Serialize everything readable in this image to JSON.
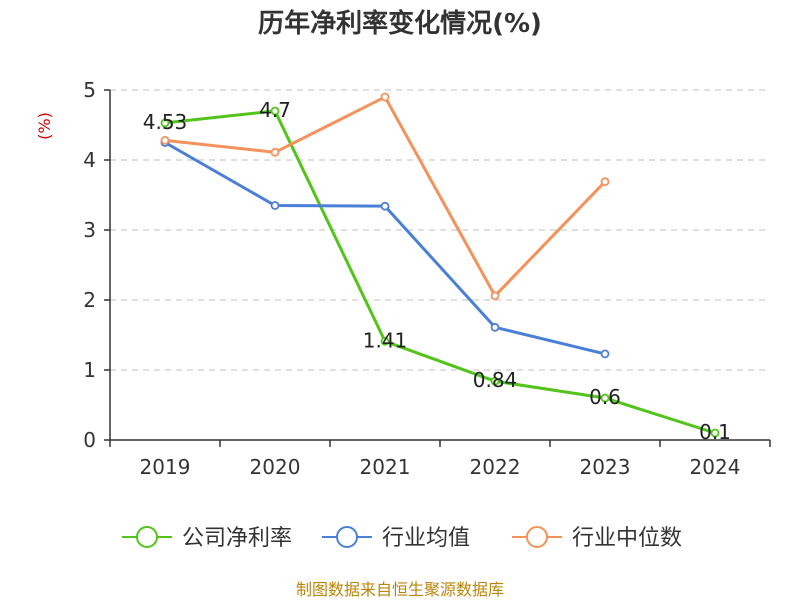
{
  "chart_data": {
    "type": "line",
    "title": "历年净利率变化情况(%)",
    "ylabel": "(%)",
    "xlabel": "",
    "categories": [
      "2019",
      "2020",
      "2021",
      "2022",
      "2023",
      "2024"
    ],
    "ylim": [
      0,
      5
    ],
    "yticks": [
      0,
      1,
      2,
      3,
      4,
      5
    ],
    "grid": true,
    "legend_position": "bottom",
    "series": [
      {
        "name": "公司净利率",
        "color": "#52c41a",
        "values": [
          4.53,
          4.7,
          1.41,
          0.84,
          0.6,
          0.1
        ],
        "show_labels": true,
        "labels": [
          "4.53",
          "4.7",
          "1.41",
          "0.84",
          "0.6",
          "0.1"
        ]
      },
      {
        "name": "行业均值",
        "color": "#4a7fd8",
        "values": [
          4.25,
          3.35,
          3.34,
          1.61,
          1.23,
          null
        ],
        "show_labels": false
      },
      {
        "name": "行业中位数",
        "color": "#f5915a",
        "values": [
          4.28,
          4.11,
          4.9,
          2.06,
          3.69,
          null
        ],
        "show_labels": false
      }
    ],
    "source": "制图数据来自恒生聚源数据库"
  }
}
